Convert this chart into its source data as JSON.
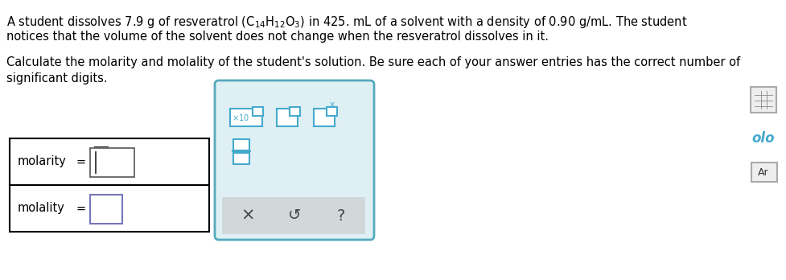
{
  "title_line1a": "A student dissolves 7.9 g of resveratrol ",
  "title_formula": "(C",
  "title_line1b": " in 425. mL of a solvent with a density of 0.90 g/mL. The student",
  "title_line2": "notices that the volume of the solvent does not change when the resveratrol dissolves in it.",
  "body_line1": "Calculate the molarity and molality of the student's solution. Be sure each of your answer entries has the correct number of",
  "body_line2": "significant digits.",
  "label1": "molarity",
  "label2": "molality",
  "eq": "=",
  "bg_color": "#ffffff",
  "text_color": "#000000",
  "box_color": "#000000",
  "panel_bg": "#dff0f5",
  "panel_border": "#55aabb",
  "icon_color": "#44aacc",
  "font_size_title": 10.5,
  "font_size_body": 10.5,
  "font_size_label": 10.5
}
